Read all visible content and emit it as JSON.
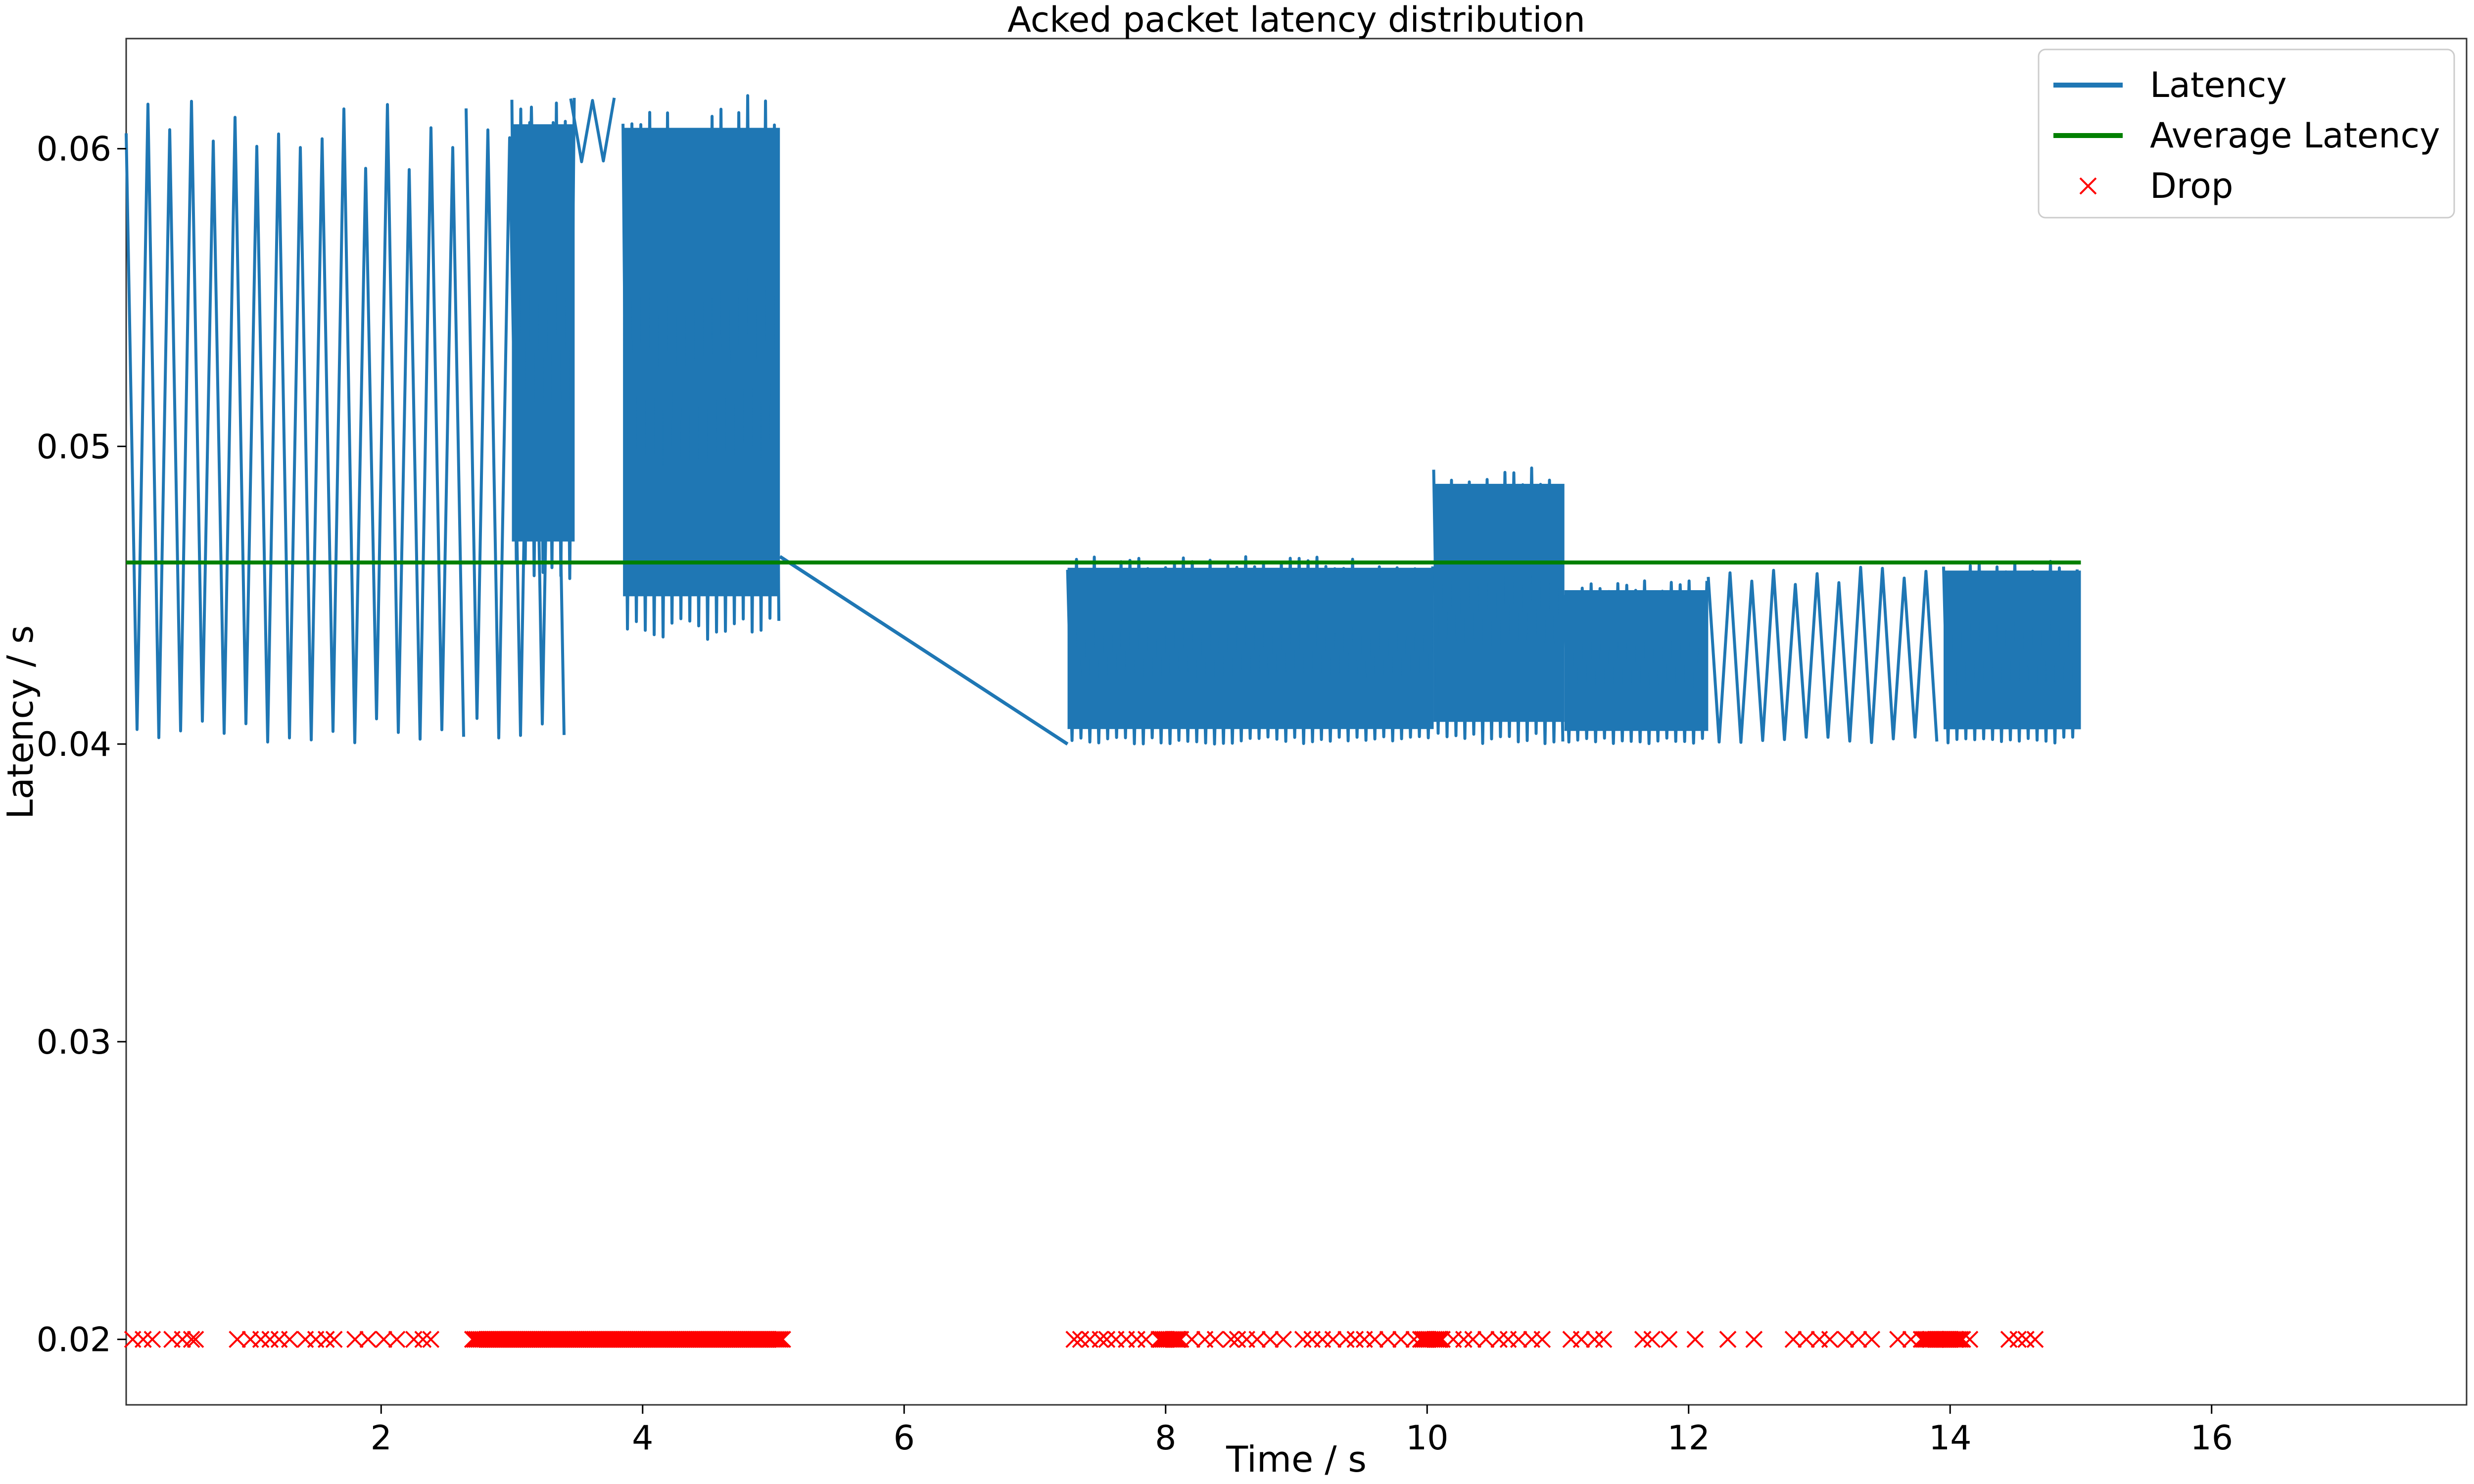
{
  "chart_data": {
    "type": "line",
    "title": "Acked packet latency distribution",
    "xlabel": "Time / s",
    "ylabel": "Latency / s",
    "xlim": [
      0.05,
      17.95
    ],
    "ylim": [
      0.0178,
      0.0637
    ],
    "x_ticks": [
      2,
      4,
      6,
      8,
      10,
      12,
      14,
      16
    ],
    "y_ticks": [
      0.02,
      0.03,
      0.04,
      0.05,
      0.06
    ],
    "x_tick_labels": [
      "2",
      "4",
      "6",
      "8",
      "10",
      "12",
      "14",
      "16"
    ],
    "y_tick_labels": [
      "0.02",
      "0.03",
      "0.04",
      "0.05",
      "0.06"
    ],
    "grid": false,
    "legend_position": "top-right",
    "series": [
      {
        "name": "Latency",
        "type": "line",
        "color": "#1f77b4",
        "segments": [
          {
            "x_start": 0.05,
            "x_end": 2.65,
            "y_min": 0.04,
            "y_max": 0.0618,
            "dense_fill": false
          },
          {
            "x_start": 2.65,
            "x_end": 3.45,
            "y_min": 0.04,
            "y_max": 0.0618,
            "dense_fill": false
          },
          {
            "x_start": 3.0,
            "x_end": 3.48,
            "y_min": 0.0455,
            "y_max": 0.0618,
            "dense_fill": true
          },
          {
            "x_start": 3.45,
            "x_end": 3.82,
            "y_min": 0.0595,
            "y_max": 0.0618,
            "dense_fill": false
          },
          {
            "x_start": 3.85,
            "x_end": 5.05,
            "y_min": 0.0435,
            "y_max": 0.0618,
            "dense_fill": true
          },
          {
            "x_start": 7.25,
            "x_end": 10.05,
            "y_min": 0.04,
            "y_max": 0.0463,
            "dense_fill": true
          },
          {
            "x_start": 10.05,
            "x_end": 11.05,
            "y_min": 0.04,
            "y_max": 0.0493,
            "dense_fill": true
          },
          {
            "x_start": 11.05,
            "x_end": 12.15,
            "y_min": 0.04,
            "y_max": 0.0455,
            "dense_fill": true
          },
          {
            "x_start": 12.15,
            "x_end": 13.95,
            "y_min": 0.04,
            "y_max": 0.046,
            "dense_fill": false
          },
          {
            "x_start": 13.95,
            "x_end": 15.0,
            "y_min": 0.04,
            "y_max": 0.0462,
            "dense_fill": true
          }
        ],
        "connector": [
          {
            "x": 5.05,
            "y": 0.0463
          },
          {
            "x": 7.25,
            "y": 0.04
          }
        ]
      },
      {
        "name": "Average Latency",
        "type": "hline",
        "color": "#008000",
        "y": 0.0461,
        "x_start": 0.05,
        "x_end": 15.0
      },
      {
        "name": "Drop",
        "type": "scatter",
        "marker": "x",
        "color": "#ff0000",
        "y": 0.02,
        "x": [
          0.1,
          0.18,
          0.25,
          0.4,
          0.48,
          0.55,
          0.58,
          0.9,
          1.0,
          1.08,
          1.15,
          1.22,
          1.3,
          1.42,
          1.5,
          1.58,
          1.64,
          1.8,
          1.9,
          2.02,
          2.12,
          2.25,
          2.32,
          2.38,
          7.3,
          7.35,
          7.42,
          7.5,
          7.55,
          7.62,
          7.7,
          7.78,
          7.85,
          8.1,
          8.2,
          8.3,
          8.38,
          8.5,
          8.55,
          8.62,
          8.7,
          8.8,
          8.9,
          9.05,
          9.12,
          9.2,
          9.28,
          9.38,
          9.45,
          9.52,
          9.6,
          9.7,
          9.8,
          9.9,
          10.1,
          10.2,
          10.28,
          10.35,
          10.45,
          10.55,
          10.62,
          10.7,
          10.8,
          10.88,
          11.1,
          11.18,
          11.28,
          11.35,
          11.65,
          11.72,
          11.85,
          12.05,
          12.3,
          12.5,
          12.8,
          12.9,
          13.0,
          13.08,
          13.2,
          13.3,
          13.4,
          13.6,
          13.7,
          13.85,
          14.0,
          14.15,
          14.45,
          14.52,
          14.58,
          14.65
        ],
        "dense_ranges": [
          [
            2.7,
            3.0
          ],
          [
            3.0,
            5.08
          ],
          [
            7.95,
            8.12
          ],
          [
            9.95,
            10.12
          ],
          [
            13.78,
            14.1
          ]
        ]
      }
    ]
  }
}
